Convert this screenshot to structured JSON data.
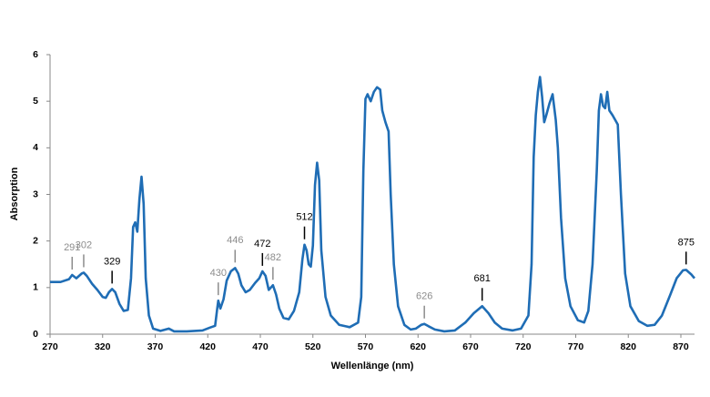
{
  "chart_data": {
    "type": "line",
    "ylabel": "Absorption",
    "xlabel": "Wellenlänge (nm)",
    "color": "#1f6db5",
    "x": [
      270,
      280,
      288,
      291,
      295,
      300,
      302,
      305,
      310,
      315,
      320,
      323,
      326,
      329,
      332,
      336,
      340,
      344,
      347,
      349,
      351,
      353,
      355,
      357,
      359,
      361,
      364,
      368,
      375,
      383,
      388,
      400,
      415,
      422,
      427,
      429,
      430,
      432,
      435,
      438,
      442,
      446,
      449,
      452,
      456,
      460,
      465,
      469,
      472,
      475,
      478,
      482,
      485,
      488,
      492,
      497,
      502,
      507,
      510,
      512,
      514,
      516,
      518,
      520,
      522,
      524,
      526,
      528,
      532,
      537,
      545,
      555,
      563,
      566,
      568,
      570,
      572,
      575,
      578,
      581,
      584,
      586,
      589,
      592,
      594,
      597,
      601,
      607,
      613,
      618,
      623,
      626,
      630,
      636,
      645,
      655,
      665,
      673,
      681,
      687,
      693,
      700,
      710,
      718,
      725,
      728,
      730,
      732,
      734,
      736,
      738,
      740,
      742,
      745,
      748,
      751,
      753,
      756,
      760,
      765,
      772,
      778,
      782,
      786,
      790,
      792,
      794,
      796,
      798,
      800,
      802,
      805,
      810,
      813,
      817,
      822,
      830,
      838,
      845,
      852,
      860,
      866,
      872,
      875,
      880,
      883
    ],
    "values": [
      1.12,
      1.12,
      1.18,
      1.27,
      1.2,
      1.3,
      1.32,
      1.25,
      1.08,
      0.95,
      0.8,
      0.78,
      0.9,
      0.97,
      0.9,
      0.65,
      0.5,
      0.52,
      1.2,
      2.3,
      2.4,
      2.2,
      2.9,
      3.38,
      2.8,
      1.2,
      0.4,
      0.12,
      0.07,
      0.12,
      0.06,
      0.06,
      0.08,
      0.14,
      0.18,
      0.55,
      0.72,
      0.55,
      0.75,
      1.15,
      1.35,
      1.42,
      1.3,
      1.05,
      0.9,
      0.95,
      1.1,
      1.2,
      1.35,
      1.25,
      0.95,
      1.05,
      0.85,
      0.55,
      0.35,
      0.32,
      0.5,
      0.9,
      1.6,
      1.92,
      1.8,
      1.5,
      1.45,
      1.9,
      3.2,
      3.68,
      3.3,
      1.8,
      0.8,
      0.4,
      0.2,
      0.15,
      0.25,
      0.8,
      3.5,
      5.05,
      5.15,
      5.0,
      5.2,
      5.3,
      5.25,
      4.8,
      4.55,
      4.35,
      3.0,
      1.5,
      0.6,
      0.2,
      0.1,
      0.12,
      0.2,
      0.22,
      0.17,
      0.1,
      0.06,
      0.08,
      0.25,
      0.45,
      0.6,
      0.45,
      0.25,
      0.12,
      0.08,
      0.12,
      0.4,
      1.5,
      3.8,
      4.7,
      5.2,
      5.52,
      5.1,
      4.55,
      4.7,
      4.95,
      5.15,
      4.6,
      4.0,
      2.5,
      1.2,
      0.6,
      0.3,
      0.25,
      0.5,
      1.5,
      3.5,
      4.8,
      5.15,
      4.9,
      4.85,
      5.2,
      4.8,
      4.7,
      4.5,
      3.0,
      1.3,
      0.6,
      0.28,
      0.18,
      0.2,
      0.4,
      0.85,
      1.2,
      1.37,
      1.38,
      1.28,
      1.2
    ],
    "xlim": [
      270,
      883
    ],
    "ylim": [
      0,
      6
    ],
    "xticks": [
      270,
      320,
      370,
      420,
      470,
      520,
      570,
      620,
      670,
      720,
      770,
      820,
      870
    ],
    "yticks": [
      0,
      1,
      2,
      3,
      4,
      5,
      6
    ],
    "annotations": [
      {
        "x": 291,
        "y": 1.27,
        "color": "#8c8c8c"
      },
      {
        "x": 302,
        "y": 1.32,
        "color": "#8c8c8c"
      },
      {
        "x": 329,
        "y": 0.97,
        "color": "#000000"
      },
      {
        "x": 430,
        "y": 0.72,
        "color": "#8c8c8c"
      },
      {
        "x": 446,
        "y": 1.42,
        "color": "#8c8c8c"
      },
      {
        "x": 472,
        "y": 1.35,
        "color": "#000000"
      },
      {
        "x": 482,
        "y": 1.05,
        "color": "#8c8c8c"
      },
      {
        "x": 512,
        "y": 1.92,
        "color": "#000000"
      },
      {
        "x": 626,
        "y": 0.22,
        "color": "#8c8c8c"
      },
      {
        "x": 681,
        "y": 0.6,
        "color": "#000000"
      },
      {
        "x": 875,
        "y": 1.38,
        "color": "#000000"
      }
    ]
  }
}
